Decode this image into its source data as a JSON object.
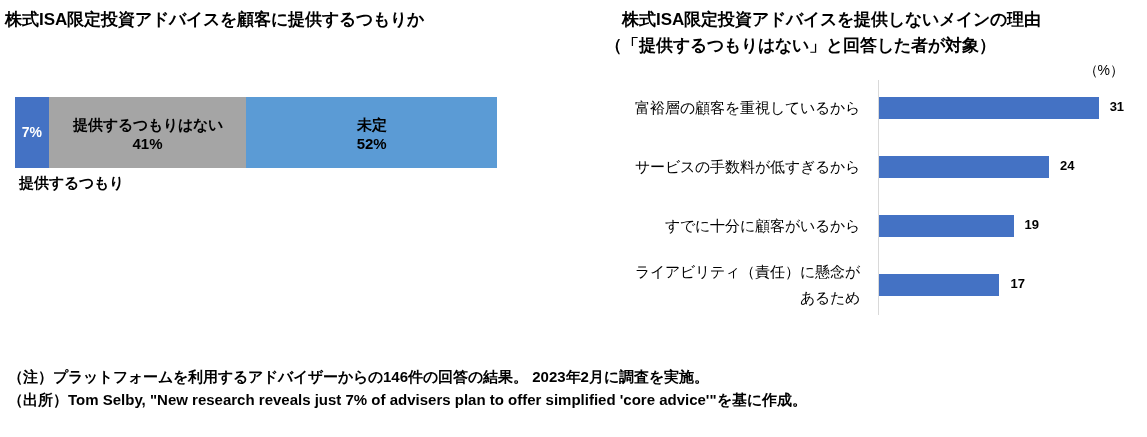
{
  "chart_data": [
    {
      "type": "bar",
      "orientation": "horizontal",
      "stacked": true,
      "title": "株式ISA限定投資アドバイスを顧客に提供するつもりか",
      "categories": [
        null
      ],
      "series": [
        {
          "name": "提供するつもり",
          "color": "#4472c4",
          "values": [
            7
          ],
          "value_labels": [
            "7%"
          ]
        },
        {
          "name": "提供するつもりはない",
          "color": "#a5a5a5",
          "values": [
            41
          ],
          "value_labels": [
            "41%"
          ]
        },
        {
          "name": "未定",
          "color": "#5b9bd5",
          "values": [
            52
          ],
          "value_labels": [
            "52%"
          ]
        }
      ],
      "annotations": [
        "（注）プラットフォームを利用するアドバイザーからの146件の回答の結果。 2023年2月に調査を実施。",
        "（出所）Tom Selby, \"New research reveals just 7% of advisers plan to offer simplified 'core advice'\"を基に作成。"
      ]
    },
    {
      "type": "bar",
      "orientation": "horizontal",
      "title": "株式ISA限定投資アドバイスを提供しないメインの理由",
      "subtitle": "（「提供するつもりはない」と回答した者が対象）",
      "categories": [
        "富裕層の顧客を重視しているから",
        "サービスの手数料が低すぎるから",
        "すでに十分に顧客がいるから",
        "ライアビリティ（責任）に懸念があるため"
      ],
      "values": [
        31,
        24,
        19,
        17
      ],
      "color": "#4472c4",
      "data_labels": true,
      "annotations": [
        "（%）"
      ]
    }
  ]
}
